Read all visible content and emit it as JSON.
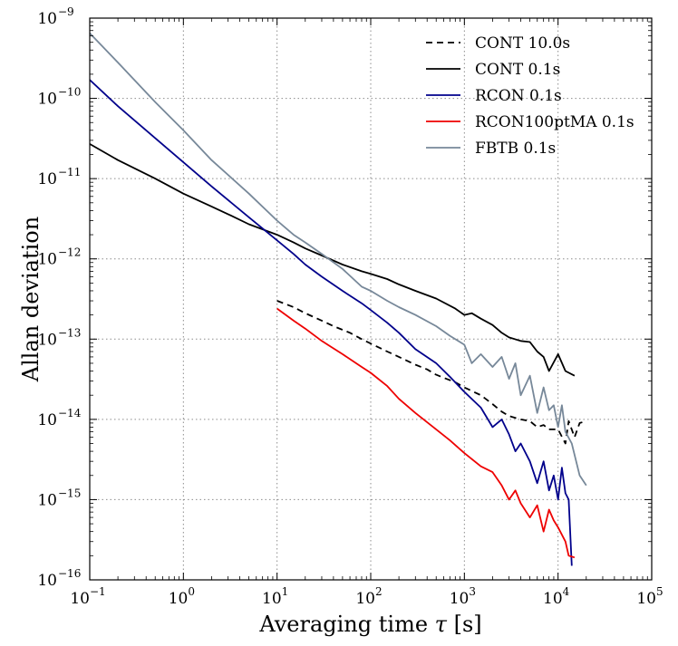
{
  "chart_data": {
    "type": "line",
    "scale": {
      "x": "log",
      "y": "log"
    },
    "xlabel_text": "Averaging time ",
    "xlabel_symbol": "τ",
    "xlabel_unit": " [s]",
    "ylabel": "Allan deviation",
    "xlim": [
      0.1,
      100000
    ],
    "ylim": [
      1e-16,
      1e-09
    ],
    "grid": true,
    "legend_position": "top-right",
    "x_ticks": [
      {
        "base": "10",
        "exp": "−1",
        "value": 0.1
      },
      {
        "base": "10",
        "exp": "0",
        "value": 1
      },
      {
        "base": "10",
        "exp": "1",
        "value": 10
      },
      {
        "base": "10",
        "exp": "2",
        "value": 100
      },
      {
        "base": "10",
        "exp": "3",
        "value": 1000
      },
      {
        "base": "10",
        "exp": "4",
        "value": 10000
      },
      {
        "base": "10",
        "exp": "5",
        "value": 100000
      }
    ],
    "y_ticks": [
      {
        "base": "10",
        "exp": "−16",
        "value": 1e-16
      },
      {
        "base": "10",
        "exp": "−15",
        "value": 1e-15
      },
      {
        "base": "10",
        "exp": "−14",
        "value": 1e-14
      },
      {
        "base": "10",
        "exp": "−13",
        "value": 1e-13
      },
      {
        "base": "10",
        "exp": "−12",
        "value": 1e-12
      },
      {
        "base": "10",
        "exp": "−11",
        "value": 1e-11
      },
      {
        "base": "10",
        "exp": "−10",
        "value": 1e-10
      },
      {
        "base": "10",
        "exp": "−9",
        "value": 1e-09
      }
    ],
    "series": [
      {
        "name": "CONT 10.0s",
        "color": "#000000",
        "dashed": true,
        "x": [
          10,
          15,
          20,
          30,
          40,
          60,
          80,
          100,
          150,
          200,
          300,
          400,
          500,
          600,
          800,
          1000,
          1500,
          2000,
          2500,
          3000,
          4000,
          5000,
          6000,
          7000,
          8000,
          10000,
          12000,
          13000,
          15000,
          17000,
          20000
        ],
        "y": [
          3e-13,
          2.5e-13,
          2.1e-13,
          1.7e-13,
          1.45e-13,
          1.2e-13,
          1e-13,
          8.8e-14,
          7e-14,
          6e-14,
          4.8e-14,
          4.2e-14,
          3.6e-14,
          3.3e-14,
          2.9e-14,
          2.5e-14,
          2e-14,
          1.55e-14,
          1.25e-14,
          1.1e-14,
          1e-14,
          9.5e-15,
          8e-15,
          8.5e-15,
          7.5e-15,
          7.5e-15,
          5e-15,
          9.5e-15,
          6e-15,
          9e-15,
          9.5e-15
        ]
      },
      {
        "name": "CONT 0.1s",
        "color": "#000000",
        "dashed": false,
        "x": [
          0.1,
          0.2,
          0.5,
          1,
          2,
          3,
          5,
          10,
          15,
          20,
          30,
          50,
          80,
          100,
          150,
          200,
          300,
          500,
          800,
          1000,
          1200,
          1500,
          2000,
          2500,
          3000,
          4000,
          5000,
          6000,
          7000,
          8000,
          10000,
          12000,
          15000
        ],
        "y": [
          2.7e-11,
          1.7e-11,
          1e-11,
          6.5e-12,
          4.5e-12,
          3.6e-12,
          2.7e-12,
          2e-12,
          1.6e-12,
          1.35e-12,
          1.1e-12,
          8.5e-13,
          7e-13,
          6.5e-13,
          5.6e-13,
          4.8e-13,
          4e-13,
          3.2e-13,
          2.4e-13,
          2e-13,
          2.1e-13,
          1.8e-13,
          1.5e-13,
          1.2e-13,
          1.05e-13,
          9.5e-14,
          9.2e-14,
          7e-14,
          6e-14,
          4e-14,
          6.5e-14,
          4e-14,
          3.5e-14
        ]
      },
      {
        "name": "RCON 0.1s",
        "color": "#00008b",
        "dashed": false,
        "x": [
          0.1,
          0.2,
          0.5,
          1,
          2,
          5,
          10,
          15,
          20,
          30,
          50,
          80,
          100,
          150,
          200,
          300,
          500,
          700,
          1000,
          1500,
          2000,
          2500,
          3000,
          3500,
          4000,
          5000,
          6000,
          7000,
          8000,
          9000,
          10000,
          11000,
          12000,
          13000,
          14000
        ],
        "y": [
          1.7e-10,
          8e-11,
          3.2e-11,
          1.6e-11,
          8e-12,
          3.3e-12,
          1.7e-12,
          1.15e-12,
          8.5e-13,
          6e-13,
          4e-13,
          2.8e-13,
          2.3e-13,
          1.6e-13,
          1.2e-13,
          7.5e-14,
          5e-14,
          3.4e-14,
          2.2e-14,
          1.4e-14,
          8e-15,
          1e-14,
          6.5e-15,
          4e-15,
          5e-15,
          3e-15,
          1.6e-15,
          3e-15,
          1.3e-15,
          2e-15,
          1e-15,
          2.5e-15,
          1.2e-15,
          1e-15,
          1.5e-16
        ]
      },
      {
        "name": "RCON100ptMA 0.1s",
        "color": "#ee0000",
        "dashed": false,
        "x": [
          10,
          15,
          20,
          30,
          50,
          80,
          100,
          150,
          200,
          300,
          500,
          700,
          1000,
          1500,
          2000,
          2500,
          3000,
          3500,
          4000,
          5000,
          6000,
          7000,
          8000,
          9000,
          10000,
          12000,
          13000,
          15000
        ],
        "y": [
          2.4e-13,
          1.7e-13,
          1.35e-13,
          9.5e-14,
          6.5e-14,
          4.5e-14,
          3.8e-14,
          2.6e-14,
          1.8e-14,
          1.2e-14,
          7.5e-15,
          5.5e-15,
          3.8e-15,
          2.6e-15,
          2.2e-15,
          1.5e-15,
          1e-15,
          1.3e-15,
          9e-16,
          6e-16,
          8.5e-16,
          4e-16,
          7.5e-16,
          5.5e-16,
          4.5e-16,
          3e-16,
          2e-16,
          1.9e-16
        ]
      },
      {
        "name": "FBTB 0.1s",
        "color": "#778899",
        "dashed": false,
        "x": [
          0.1,
          0.2,
          0.5,
          1,
          2,
          5,
          10,
          15,
          20,
          30,
          50,
          80,
          100,
          150,
          200,
          300,
          500,
          700,
          1000,
          1200,
          1500,
          2000,
          2500,
          3000,
          3500,
          4000,
          5000,
          6000,
          7000,
          8000,
          9000,
          10000,
          11000,
          12000,
          14000,
          17000,
          20000
        ],
        "y": [
          6.5e-10,
          2.8e-10,
          9e-11,
          4e-11,
          1.7e-11,
          6.5e-12,
          3e-12,
          2e-12,
          1.6e-12,
          1.15e-12,
          7.5e-13,
          4.5e-13,
          4e-13,
          3e-13,
          2.5e-13,
          2e-13,
          1.45e-13,
          1.1e-13,
          8.5e-14,
          5e-14,
          6.5e-14,
          4.5e-14,
          6e-14,
          3.2e-14,
          5e-14,
          2e-14,
          3.5e-14,
          1.2e-14,
          2.5e-14,
          1.3e-14,
          1.5e-14,
          8e-15,
          1.5e-14,
          7e-15,
          5e-15,
          2e-15,
          1.5e-15
        ]
      }
    ]
  }
}
